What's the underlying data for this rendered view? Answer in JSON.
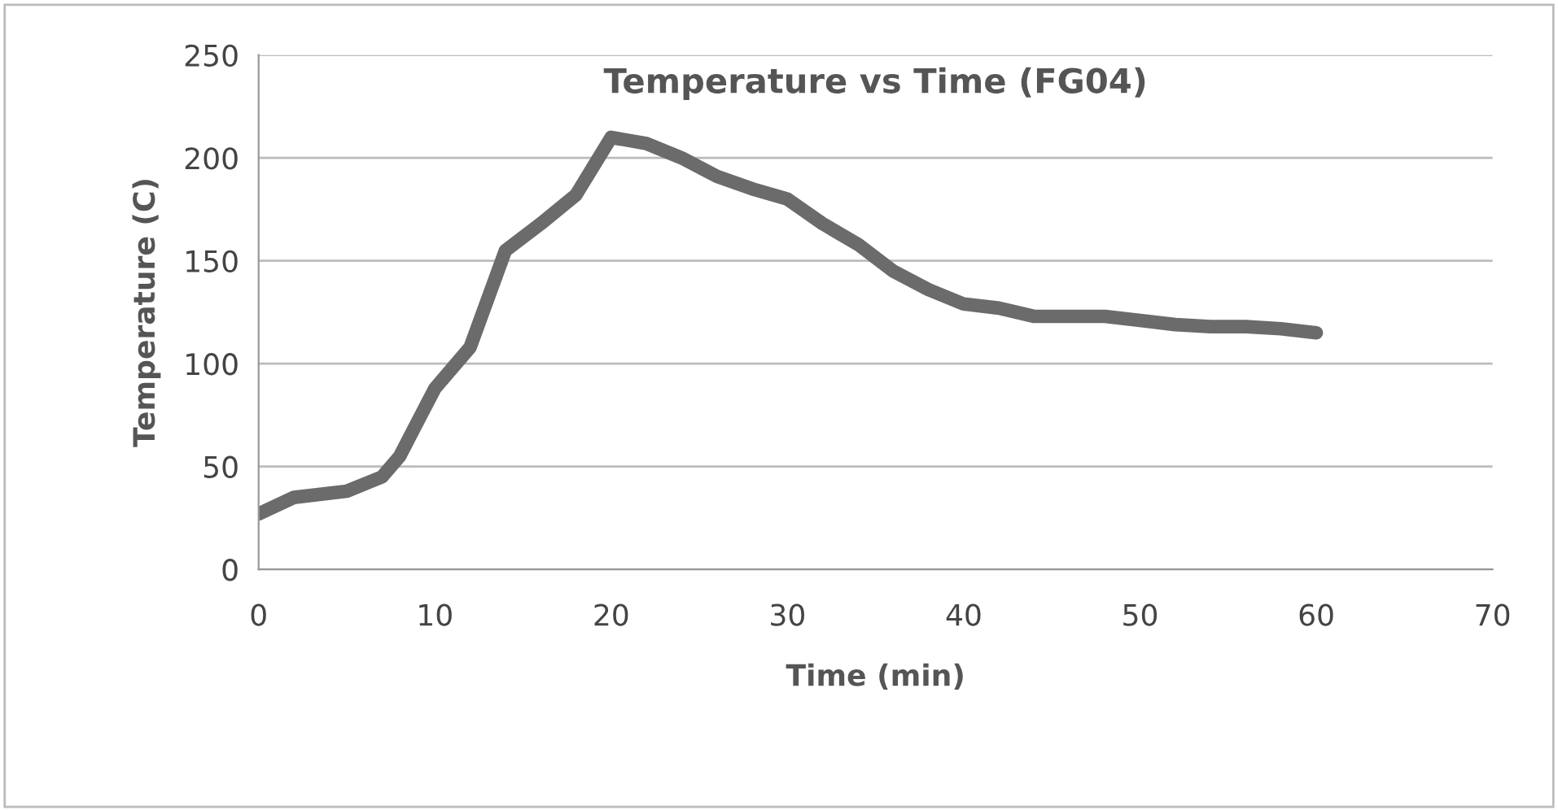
{
  "chart_data": {
    "type": "line",
    "title": "Temperature vs Time (FG04)",
    "xlabel": "Time (min)",
    "ylabel": "Temperature (C)",
    "x": [
      0,
      2,
      5,
      7,
      8,
      10,
      12,
      14,
      16,
      18,
      20,
      22,
      24,
      26,
      28,
      30,
      32,
      34,
      36,
      38,
      40,
      42,
      44,
      46,
      48,
      50,
      52,
      54,
      56,
      58,
      60
    ],
    "series": [
      {
        "color": "#6b6b6b",
        "values": [
          27,
          35,
          38,
          45,
          55,
          88,
          108,
          155,
          168,
          182,
          210,
          207,
          200,
          191,
          185,
          180,
          168,
          158,
          145,
          136,
          129,
          127,
          123,
          123,
          123,
          121,
          119,
          118,
          118,
          117,
          115
        ]
      }
    ],
    "xlim": [
      0,
      70
    ],
    "xticks": [
      0,
      10,
      20,
      30,
      40,
      50,
      60,
      70
    ],
    "ylim": [
      0,
      250
    ],
    "yticks": [
      0,
      50,
      100,
      150,
      200,
      250
    ],
    "grid": "y",
    "marker": "none",
    "line_style": "solid"
  }
}
